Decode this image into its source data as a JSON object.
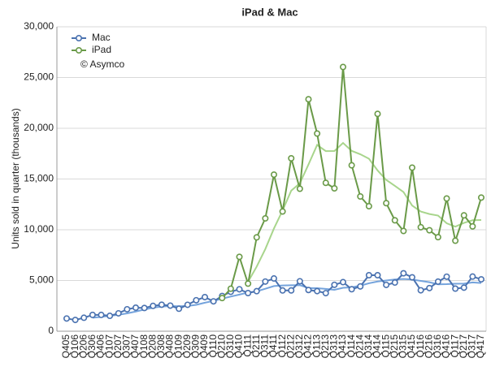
{
  "chart_data": {
    "type": "line",
    "title": "iPad & Mac",
    "y_label": "Units sold in quarter (thousands)",
    "annotation": "© Asymco",
    "legend": "top-left",
    "grid": true,
    "categories": [
      "Q405",
      "Q106",
      "Q206",
      "Q306",
      "Q406",
      "Q107",
      "Q207",
      "Q307",
      "Q407",
      "Q108",
      "Q208",
      "Q308",
      "Q408",
      "Q109",
      "Q209",
      "Q309",
      "Q409",
      "Q110",
      "Q210",
      "Q310",
      "Q410",
      "Q111",
      "Q211",
      "Q311",
      "Q411",
      "Q112",
      "Q212",
      "Q312",
      "Q412",
      "Q113",
      "Q213",
      "Q313",
      "Q413",
      "Q114",
      "Q214",
      "Q314",
      "Q414",
      "Q115",
      "Q215",
      "Q315",
      "Q415",
      "Q116",
      "Q216",
      "Q316",
      "Q416",
      "Q117",
      "Q217",
      "Q317",
      "Q417"
    ],
    "ylim": [
      0,
      30000
    ],
    "yticks": [
      0,
      {
        "value": 5000,
        "label": "5,000"
      },
      {
        "value": 10000,
        "label": "10,000"
      },
      {
        "value": 15000,
        "label": "15,000"
      },
      {
        "value": 20000,
        "label": "20,000"
      },
      {
        "value": 25000,
        "label": "25,000"
      },
      {
        "value": 30000,
        "label": "30,000"
      }
    ],
    "series": [
      {
        "name": "Mac",
        "color": "#4a72b0",
        "trend_color": "#74a3dc",
        "values": [
          1254,
          1112,
          1327,
          1610,
          1606,
          1517,
          1764,
          2164,
          2319,
          2289,
          2496,
          2611,
          2524,
          2216,
          2603,
          3053,
          3362,
          2943,
          3472,
          3885,
          4134,
          3760,
          3947,
          4894,
          5198,
          4017,
          4020,
          4923,
          4061,
          3952,
          3754,
          4574,
          4837,
          4136,
          4413,
          5520,
          5519,
          4563,
          4796,
          5709,
          5312,
          4034,
          4252,
          4886,
          5374,
          4199,
          4292,
          5386,
          5112
        ],
        "trend": [
          null,
          null,
          null,
          1326,
          1414,
          1515,
          1624,
          1763,
          1941,
          2134,
          2317,
          2429,
          2480,
          2462,
          2489,
          2599,
          2809,
          2990,
          3208,
          3416,
          3609,
          3813,
          3932,
          4184,
          4450,
          4514,
          4532,
          4540,
          4255,
          4239,
          4173,
          4085,
          4279,
          4325,
          4490,
          4727,
          4897,
          5004,
          5100,
          5147,
          5095,
          4963,
          4827,
          4621,
          4637,
          4678,
          4688,
          4813,
          4747
        ]
      },
      {
        "name": "iPad",
        "color": "#6a9a48",
        "trend_color": "#a8d58c",
        "values": [
          null,
          null,
          null,
          null,
          null,
          null,
          null,
          null,
          null,
          null,
          null,
          null,
          null,
          null,
          null,
          null,
          null,
          null,
          3270,
          4190,
          7330,
          4690,
          9250,
          11120,
          15430,
          11800,
          17040,
          14040,
          22860,
          19480,
          14620,
          14080,
          26040,
          16350,
          13280,
          12320,
          21420,
          12620,
          10930,
          9880,
          16120,
          10250,
          9950,
          9270,
          13080,
          8920,
          11420,
          10330,
          13170
        ],
        "trend": [
          null,
          null,
          null,
          null,
          null,
          null,
          null,
          null,
          null,
          null,
          null,
          null,
          null,
          null,
          null,
          null,
          null,
          null,
          null,
          null,
          null,
          4870,
          6365,
          8098,
          10123,
          11900,
          13848,
          14578,
          16435,
          18355,
          17750,
          17760,
          18555,
          17773,
          17438,
          16998,
          15843,
          14910,
          14323,
          13713,
          12388,
          11795,
          11550,
          11398,
          10638,
          10305,
          10673,
          10938,
          10960
        ]
      }
    ]
  }
}
